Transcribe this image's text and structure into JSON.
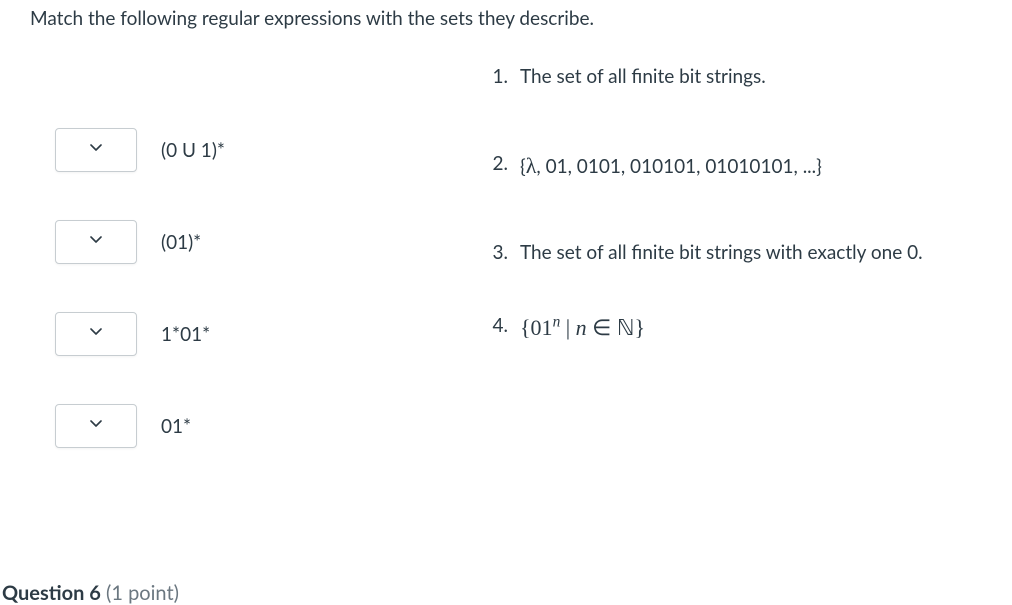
{
  "prompt": "Match the following regular expressions with the sets they describe.",
  "matches": [
    {
      "label": "(0 U 1)*"
    },
    {
      "label": "(01)*"
    },
    {
      "label": "1*01*"
    },
    {
      "label": "01*"
    }
  ],
  "answers": [
    {
      "num": "1.",
      "html": "The set of all finite bit strings."
    },
    {
      "num": "2.",
      "html": "{<span class='math'>λ</span>, 01, 0101, 010101, 01010101, ...}"
    },
    {
      "num": "3.",
      "html": "The set of all finite bit strings with exactly one 0."
    },
    {
      "num": "4.",
      "html": "<span class='math'>{01<sup>n</sup> | <span class='it'>n</span> ∈ <span class='bb'>ℕ</span>}</span>"
    }
  ],
  "nextQuestion": {
    "bold": "Question 6",
    "rest": " (1 point)"
  },
  "colors": {
    "text": "#2d3b45",
    "border": "#c7cdd1",
    "bg": "#ffffff",
    "muted": "#6b7780"
  }
}
